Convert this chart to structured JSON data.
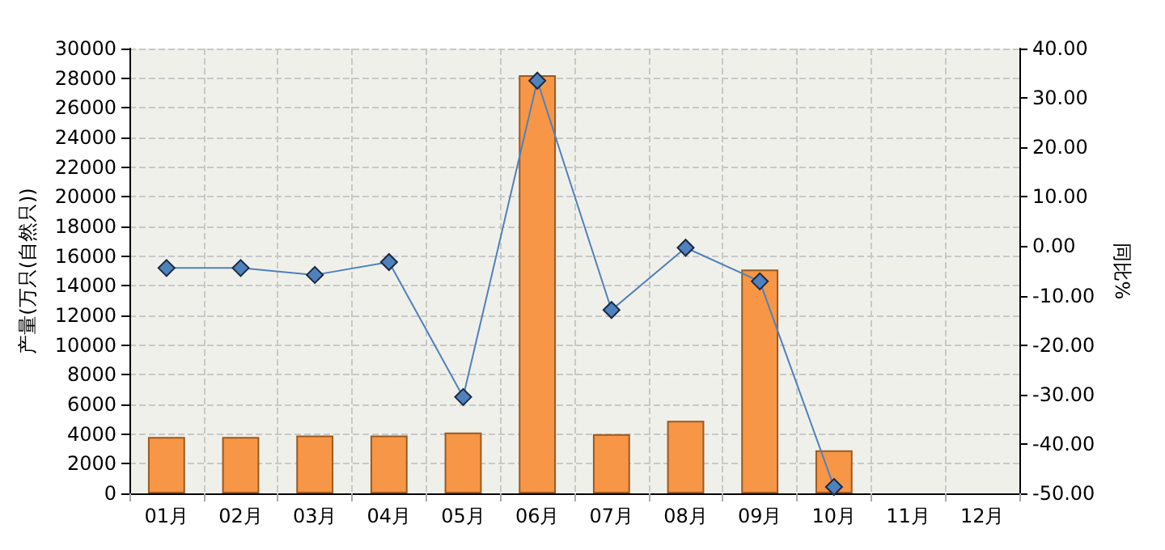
{
  "chart_data": {
    "type": "bar",
    "ylabel": "产量(万只(自然只))",
    "y2label": "同比%",
    "categories": [
      "01月",
      "02月",
      "03月",
      "04月",
      "05月",
      "06月",
      "07月",
      "08月",
      "09月",
      "10月",
      "11月",
      "12月"
    ],
    "series": [
      {
        "color": "#f79646",
        "values": [
          3800,
          3800,
          3900,
          3900,
          4100,
          28200,
          4000,
          4900,
          15100,
          2900,
          null,
          null
        ]
      },
      {
        "type": "line",
        "axis": "y2",
        "color": "#4f81bd",
        "marker": "diamond",
        "values": [
          -4.4,
          -4.4,
          -5.8,
          -3.2,
          -30.5,
          33.5,
          -12.9,
          -0.3,
          -7.1,
          -48.7,
          null,
          null
        ]
      }
    ],
    "ylim": [
      0,
      30000
    ],
    "yticks": [
      0,
      2000,
      4000,
      6000,
      8000,
      10000,
      12000,
      14000,
      16000,
      18000,
      20000,
      22000,
      24000,
      26000,
      28000,
      30000
    ],
    "y2lim": [
      -50,
      40
    ],
    "y2ticks": [
      {
        "value": -50,
        "label": "-50.00"
      },
      {
        "value": -40,
        "label": "-40.00"
      },
      {
        "value": -30,
        "label": "-30.00"
      },
      {
        "value": -20,
        "label": "-20.00"
      },
      {
        "value": -10,
        "label": "-10.00"
      },
      {
        "value": 0,
        "label": "0.00"
      },
      {
        "value": 10,
        "label": "10.00"
      },
      {
        "value": 20,
        "label": "20.00"
      },
      {
        "value": 30,
        "label": "30.00"
      },
      {
        "value": 40,
        "label": "40.00"
      }
    ],
    "grid": true
  }
}
